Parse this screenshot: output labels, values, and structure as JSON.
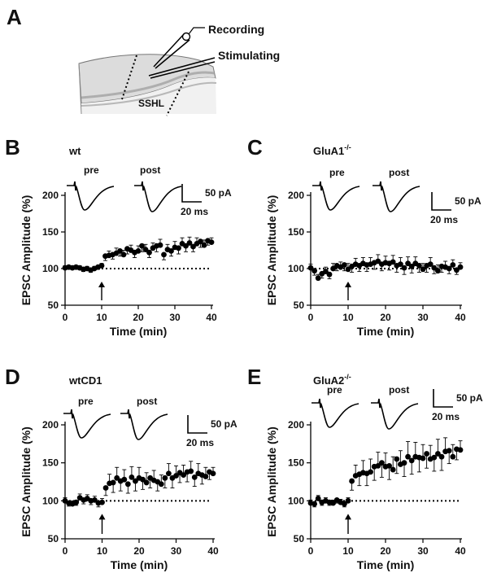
{
  "panel_a": {
    "label": "A",
    "recording_label": "Recording",
    "stimulating_label": "Stimulating",
    "region_label": "SSHL"
  },
  "common": {
    "pre_label": "pre",
    "post_label": "post",
    "scale_pa": "50 pA",
    "scale_ms": "20 ms",
    "ylabel": "EPSC Amplitude (%)",
    "xlabel": "Time (min)",
    "gene_base": "GluA",
    "ko_sup": "-/-"
  },
  "chart_data": [
    {
      "panel": "B",
      "type": "scatter",
      "title": "wt",
      "xlabel": "Time (min)",
      "ylabel": "EPSC Amplitude (%)",
      "xlim": [
        0,
        40
      ],
      "ylim": [
        50,
        200
      ],
      "xticks": [
        0,
        10,
        20,
        30,
        40
      ],
      "yticks": [
        50,
        100,
        150,
        200
      ],
      "baseline": 100,
      "arrow_x": 10,
      "x": [
        0,
        1,
        2,
        3,
        4,
        5,
        6,
        7,
        8,
        9,
        10,
        11,
        12,
        13,
        14,
        15,
        16,
        17,
        18,
        19,
        20,
        21,
        22,
        23,
        24,
        25,
        26,
        27,
        28,
        29,
        30,
        31,
        32,
        33,
        34,
        35,
        36,
        37,
        38,
        39,
        40
      ],
      "y": [
        101,
        102,
        101,
        102,
        101,
        99,
        100,
        98,
        100,
        102,
        104,
        117,
        118,
        119,
        121,
        124,
        119,
        127,
        125,
        122,
        124,
        131,
        126,
        122,
        128,
        131,
        132,
        119,
        126,
        124,
        129,
        128,
        134,
        131,
        135,
        130,
        134,
        137,
        132,
        138,
        136
      ],
      "err": [
        3,
        3,
        3,
        3,
        3,
        3,
        3,
        3,
        3,
        3,
        3,
        6,
        6,
        6,
        7,
        7,
        6,
        7,
        7,
        7,
        7,
        8,
        7,
        7,
        7,
        8,
        8,
        7,
        7,
        7,
        8,
        8,
        8,
        8,
        8,
        7,
        8,
        8,
        7,
        6,
        6
      ]
    },
    {
      "panel": "C",
      "type": "scatter",
      "title": "GluA1-/-",
      "gene_num": "1",
      "xlabel": "Time (min)",
      "ylabel": "EPSC Amplitude (%)",
      "xlim": [
        0,
        40
      ],
      "ylim": [
        50,
        200
      ],
      "xticks": [
        0,
        10,
        20,
        30,
        40
      ],
      "yticks": [
        50,
        100,
        150,
        200
      ],
      "baseline": 100,
      "arrow_x": 10,
      "x": [
        0,
        1,
        2,
        3,
        4,
        5,
        6,
        7,
        8,
        9,
        10,
        11,
        12,
        13,
        14,
        15,
        16,
        17,
        18,
        19,
        20,
        21,
        22,
        23,
        24,
        25,
        26,
        27,
        28,
        29,
        30,
        31,
        32,
        33,
        34,
        35,
        36,
        37,
        38,
        39,
        40
      ],
      "y": [
        101,
        97,
        87,
        93,
        96,
        92,
        100,
        104,
        102,
        105,
        99,
        103,
        106,
        104,
        107,
        105,
        106,
        108,
        110,
        106,
        108,
        107,
        109,
        104,
        106,
        101,
        107,
        103,
        107,
        104,
        99,
        104,
        106,
        101,
        97,
        103,
        102,
        100,
        105,
        98,
        102
      ],
      "err": [
        5,
        6,
        5,
        6,
        6,
        6,
        7,
        7,
        7,
        8,
        8,
        8,
        8,
        8,
        8,
        9,
        9,
        9,
        9,
        9,
        9,
        9,
        9,
        9,
        9,
        9,
        9,
        9,
        9,
        9,
        8,
        9,
        9,
        8,
        8,
        8,
        8,
        7,
        7,
        6,
        6
      ]
    },
    {
      "panel": "D",
      "type": "scatter",
      "title": "wtCD1",
      "xlabel": "Time (min)",
      "ylabel": "EPSC Amplitude (%)",
      "xlim": [
        0,
        40
      ],
      "ylim": [
        50,
        200
      ],
      "xticks": [
        0,
        10,
        20,
        30,
        40
      ],
      "yticks": [
        50,
        100,
        150,
        200
      ],
      "baseline": 100,
      "arrow_x": 10,
      "x": [
        0,
        1,
        2,
        3,
        4,
        5,
        6,
        7,
        8,
        9,
        10,
        11,
        12,
        13,
        14,
        15,
        16,
        17,
        18,
        19,
        20,
        21,
        22,
        23,
        24,
        25,
        26,
        27,
        28,
        29,
        30,
        31,
        32,
        33,
        34,
        35,
        36,
        37,
        38,
        39,
        40
      ],
      "y": [
        100,
        97,
        96,
        98,
        104,
        101,
        103,
        100,
        101,
        97,
        98,
        117,
        123,
        124,
        130,
        126,
        128,
        122,
        131,
        126,
        130,
        128,
        124,
        130,
        127,
        125,
        122,
        130,
        136,
        130,
        133,
        137,
        134,
        138,
        139,
        131,
        136,
        134,
        132,
        138,
        136
      ],
      "err": [
        4,
        4,
        4,
        4,
        5,
        5,
        5,
        5,
        5,
        5,
        5,
        10,
        12,
        13,
        14,
        13,
        13,
        12,
        14,
        13,
        14,
        13,
        13,
        13,
        13,
        12,
        12,
        13,
        13,
        13,
        13,
        13,
        13,
        13,
        13,
        12,
        13,
        12,
        12,
        10,
        8
      ]
    },
    {
      "panel": "E",
      "type": "scatter",
      "title": "GluA2-/-",
      "gene_num": "2",
      "xlabel": "Time (min)",
      "ylabel": "EPSC Amplitude (%)",
      "xlim": [
        0,
        40
      ],
      "ylim": [
        50,
        200
      ],
      "xticks": [
        0,
        10,
        20,
        30,
        40
      ],
      "yticks": [
        50,
        100,
        150,
        200
      ],
      "baseline": 100,
      "arrow_x": 10,
      "x": [
        0,
        1,
        2,
        3,
        4,
        5,
        6,
        7,
        8,
        9,
        10,
        11,
        12,
        13,
        14,
        15,
        16,
        17,
        18,
        19,
        20,
        21,
        22,
        23,
        24,
        25,
        26,
        27,
        28,
        29,
        30,
        31,
        32,
        33,
        34,
        35,
        36,
        37,
        38,
        39,
        40
      ],
      "y": [
        97,
        96,
        103,
        98,
        100,
        98,
        97,
        101,
        98,
        96,
        100,
        126,
        133,
        135,
        137,
        136,
        138,
        145,
        146,
        150,
        145,
        146,
        141,
        155,
        148,
        150,
        158,
        153,
        158,
        157,
        156,
        162,
        155,
        157,
        162,
        158,
        165,
        166,
        158,
        168,
        167
      ],
      "err": [
        4,
        4,
        4,
        4,
        4,
        4,
        4,
        4,
        4,
        4,
        4,
        12,
        14,
        15,
        16,
        16,
        17,
        18,
        18,
        19,
        18,
        18,
        17,
        19,
        18,
        18,
        20,
        18,
        19,
        19,
        18,
        19,
        18,
        18,
        19,
        18,
        18,
        17,
        16,
        14,
        12
      ]
    }
  ]
}
